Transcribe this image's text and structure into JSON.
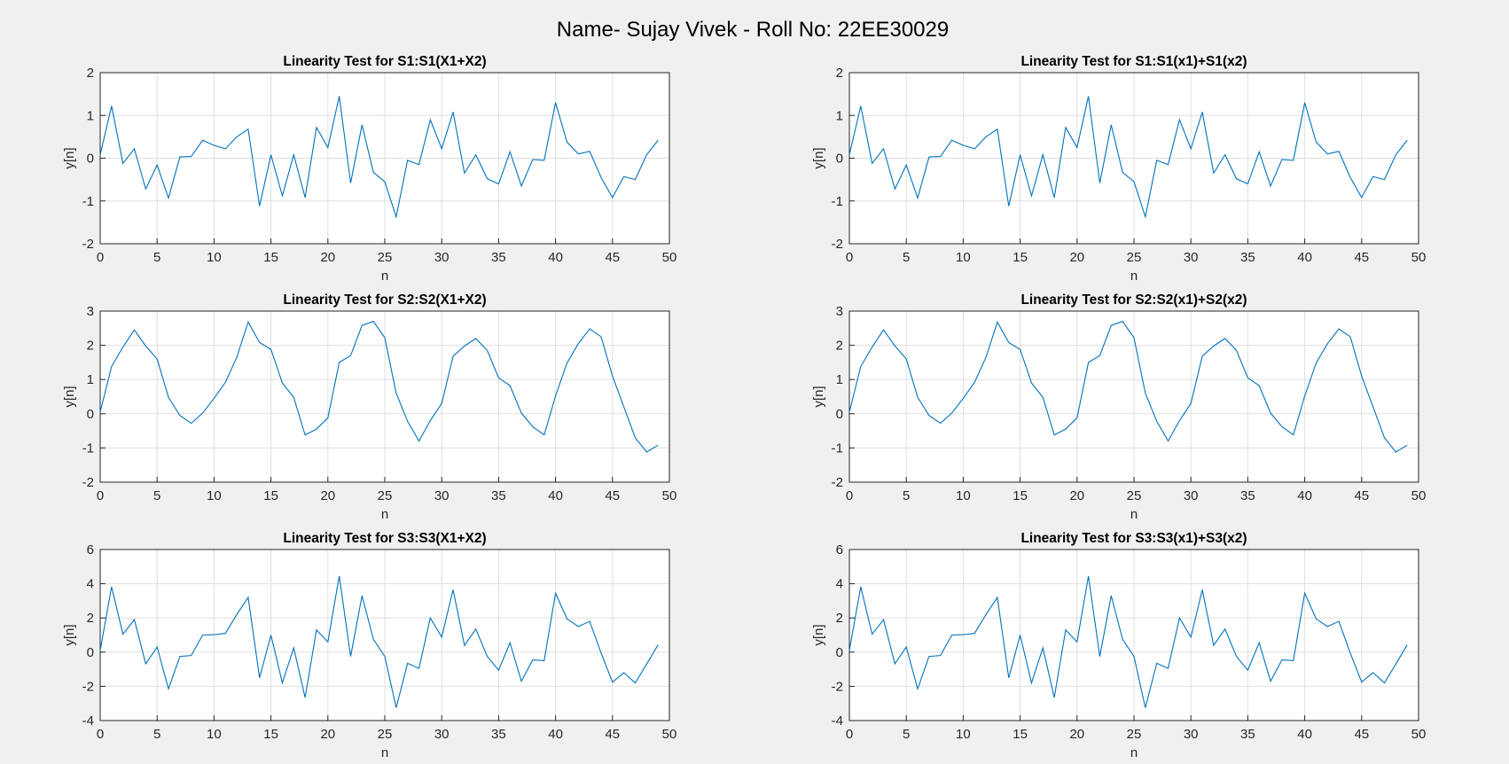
{
  "figure": {
    "suptitle": "Name- Sujay Vivek - Roll No: 22EE30029"
  },
  "colors": {
    "background": "#f0f0f0",
    "axes_background": "#ffffff",
    "line": "#0072bd",
    "grid": "#dfdfdf",
    "axis": "#262626"
  },
  "chart_data": [
    {
      "type": "line",
      "title": "Linearity Test for S1:S1(X1+X2)",
      "xlabel": "n",
      "ylabel": "y[n]",
      "xlim": [
        0,
        50
      ],
      "ylim": [
        -2,
        2
      ],
      "xticks": [
        0,
        5,
        10,
        15,
        20,
        25,
        30,
        35,
        40,
        45,
        50
      ],
      "yticks": [
        -2,
        -1,
        0,
        1,
        2
      ],
      "grid": true,
      "series": [
        {
          "x": [
            0,
            1,
            2,
            3,
            4,
            5,
            6,
            7,
            8,
            9,
            10,
            11,
            12,
            13,
            14,
            15,
            16,
            17,
            18,
            19,
            20,
            21,
            22,
            23,
            24,
            25,
            26,
            27,
            28,
            29,
            30,
            31,
            32,
            33,
            34,
            35,
            36,
            37,
            38,
            39,
            40,
            41,
            42,
            43,
            44,
            45,
            46,
            47,
            48,
            49
          ],
          "values": [
            0.08,
            1.22,
            -0.12,
            0.22,
            -0.72,
            -0.16,
            -0.93,
            0.03,
            0.04,
            0.42,
            0.3,
            0.22,
            0.5,
            0.68,
            -1.12,
            0.08,
            -0.88,
            0.08,
            -0.92,
            0.72,
            0.25,
            1.45,
            -0.58,
            0.78,
            -0.33,
            -0.55,
            -1.37,
            -0.05,
            -0.15,
            0.9,
            0.22,
            1.08,
            -0.35,
            0.08,
            -0.48,
            -0.6,
            0.15,
            -0.65,
            -0.03,
            -0.05,
            1.3,
            0.38,
            0.1,
            0.16,
            -0.45,
            -0.92,
            -0.43,
            -0.5,
            0.08,
            0.42
          ]
        }
      ]
    },
    {
      "type": "line",
      "title": "Linearity Test for S1:S1(x1)+S1(x2)",
      "xlabel": "n",
      "ylabel": "y[n]",
      "xlim": [
        0,
        50
      ],
      "ylim": [
        -2,
        2
      ],
      "xticks": [
        0,
        5,
        10,
        15,
        20,
        25,
        30,
        35,
        40,
        45,
        50
      ],
      "yticks": [
        -2,
        -1,
        0,
        1,
        2
      ],
      "grid": true,
      "series": [
        {
          "x": [
            0,
            1,
            2,
            3,
            4,
            5,
            6,
            7,
            8,
            9,
            10,
            11,
            12,
            13,
            14,
            15,
            16,
            17,
            18,
            19,
            20,
            21,
            22,
            23,
            24,
            25,
            26,
            27,
            28,
            29,
            30,
            31,
            32,
            33,
            34,
            35,
            36,
            37,
            38,
            39,
            40,
            41,
            42,
            43,
            44,
            45,
            46,
            47,
            48,
            49
          ],
          "values": [
            0.08,
            1.22,
            -0.12,
            0.22,
            -0.72,
            -0.16,
            -0.93,
            0.03,
            0.04,
            0.42,
            0.3,
            0.22,
            0.5,
            0.68,
            -1.12,
            0.08,
            -0.88,
            0.08,
            -0.92,
            0.72,
            0.25,
            1.45,
            -0.58,
            0.78,
            -0.33,
            -0.55,
            -1.37,
            -0.05,
            -0.15,
            0.9,
            0.22,
            1.08,
            -0.35,
            0.08,
            -0.48,
            -0.6,
            0.15,
            -0.65,
            -0.03,
            -0.05,
            1.3,
            0.38,
            0.1,
            0.16,
            -0.45,
            -0.92,
            -0.43,
            -0.5,
            0.08,
            0.42
          ]
        }
      ]
    },
    {
      "type": "line",
      "title": "Linearity Test for S2:S2(X1+X2)",
      "xlabel": "n",
      "ylabel": "y[n]",
      "xlim": [
        0,
        50
      ],
      "ylim": [
        -2,
        3
      ],
      "xticks": [
        0,
        5,
        10,
        15,
        20,
        25,
        30,
        35,
        40,
        45,
        50
      ],
      "yticks": [
        -2,
        -1,
        0,
        1,
        2,
        3
      ],
      "grid": true,
      "series": [
        {
          "x": [
            0,
            1,
            2,
            3,
            4,
            5,
            6,
            7,
            8,
            9,
            10,
            11,
            12,
            13,
            14,
            15,
            16,
            17,
            18,
            19,
            20,
            21,
            22,
            23,
            24,
            25,
            26,
            27,
            28,
            29,
            30,
            31,
            32,
            33,
            34,
            35,
            36,
            37,
            38,
            39,
            40,
            41,
            42,
            43,
            44,
            45,
            46,
            47,
            48,
            49
          ],
          "values": [
            0.05,
            1.38,
            1.95,
            2.45,
            1.98,
            1.6,
            0.48,
            -0.05,
            -0.28,
            0.02,
            0.45,
            0.92,
            1.65,
            2.68,
            2.08,
            1.88,
            0.9,
            0.48,
            -0.62,
            -0.45,
            -0.12,
            1.5,
            1.7,
            2.58,
            2.7,
            2.22,
            0.6,
            -0.22,
            -0.8,
            -0.2,
            0.3,
            1.68,
            1.98,
            2.2,
            1.85,
            1.05,
            0.82,
            0.02,
            -0.38,
            -0.62,
            0.52,
            1.48,
            2.05,
            2.48,
            2.25,
            1.1,
            0.2,
            -0.7,
            -1.12,
            -0.92
          ]
        }
      ]
    },
    {
      "type": "line",
      "title": "Linearity Test for S2:S2(x1)+S2(x2)",
      "xlabel": "n",
      "ylabel": "y[n]",
      "xlim": [
        0,
        50
      ],
      "ylim": [
        -2,
        3
      ],
      "xticks": [
        0,
        5,
        10,
        15,
        20,
        25,
        30,
        35,
        40,
        45,
        50
      ],
      "yticks": [
        -2,
        -1,
        0,
        1,
        2,
        3
      ],
      "grid": true,
      "series": [
        {
          "x": [
            0,
            1,
            2,
            3,
            4,
            5,
            6,
            7,
            8,
            9,
            10,
            11,
            12,
            13,
            14,
            15,
            16,
            17,
            18,
            19,
            20,
            21,
            22,
            23,
            24,
            25,
            26,
            27,
            28,
            29,
            30,
            31,
            32,
            33,
            34,
            35,
            36,
            37,
            38,
            39,
            40,
            41,
            42,
            43,
            44,
            45,
            46,
            47,
            48,
            49
          ],
          "values": [
            0.05,
            1.38,
            1.95,
            2.45,
            1.98,
            1.6,
            0.48,
            -0.05,
            -0.28,
            0.02,
            0.45,
            0.92,
            1.65,
            2.68,
            2.08,
            1.88,
            0.9,
            0.48,
            -0.62,
            -0.45,
            -0.12,
            1.5,
            1.7,
            2.58,
            2.7,
            2.22,
            0.6,
            -0.22,
            -0.8,
            -0.2,
            0.3,
            1.68,
            1.98,
            2.2,
            1.85,
            1.05,
            0.82,
            0.02,
            -0.38,
            -0.62,
            0.52,
            1.48,
            2.05,
            2.48,
            2.25,
            1.1,
            0.2,
            -0.7,
            -1.12,
            -0.92
          ]
        }
      ]
    },
    {
      "type": "line",
      "title": "Linearity Test for S3:S3(X1+X2)",
      "xlabel": "n",
      "ylabel": "y[n]",
      "xlim": [
        0,
        50
      ],
      "ylim": [
        -4,
        6
      ],
      "xticks": [
        0,
        5,
        10,
        15,
        20,
        25,
        30,
        35,
        40,
        45,
        50
      ],
      "yticks": [
        -4,
        -2,
        0,
        2,
        4,
        6
      ],
      "grid": true,
      "series": [
        {
          "x": [
            0,
            1,
            2,
            3,
            4,
            5,
            6,
            7,
            8,
            9,
            10,
            11,
            12,
            13,
            14,
            15,
            16,
            17,
            18,
            19,
            20,
            21,
            22,
            23,
            24,
            25,
            26,
            27,
            28,
            29,
            30,
            31,
            32,
            33,
            34,
            35,
            36,
            37,
            38,
            39,
            40,
            41,
            42,
            43,
            44,
            45,
            46,
            47,
            48,
            49
          ],
          "values": [
            0.1,
            3.82,
            1.05,
            1.9,
            -0.68,
            0.3,
            -2.15,
            -0.25,
            -0.2,
            1.0,
            1.02,
            1.1,
            2.2,
            3.2,
            -1.5,
            1.0,
            -1.8,
            0.25,
            -2.65,
            1.3,
            0.6,
            4.45,
            -0.25,
            3.3,
            0.75,
            -0.25,
            -3.25,
            -0.65,
            -0.95,
            2.0,
            0.88,
            3.65,
            0.4,
            1.35,
            -0.25,
            -1.05,
            0.55,
            -1.7,
            -0.45,
            -0.5,
            3.45,
            1.95,
            1.5,
            1.8,
            -0.05,
            -1.75,
            -1.2,
            -1.8,
            -0.7,
            0.42
          ]
        }
      ]
    },
    {
      "type": "line",
      "title": "Linearity Test for S3:S3(x1)+S3(x2)",
      "xlabel": "n",
      "ylabel": "y[n]",
      "xlim": [
        0,
        50
      ],
      "ylim": [
        -4,
        6
      ],
      "xticks": [
        0,
        5,
        10,
        15,
        20,
        25,
        30,
        35,
        40,
        45,
        50
      ],
      "yticks": [
        -4,
        -2,
        0,
        2,
        4,
        6
      ],
      "grid": true,
      "series": [
        {
          "x": [
            0,
            1,
            2,
            3,
            4,
            5,
            6,
            7,
            8,
            9,
            10,
            11,
            12,
            13,
            14,
            15,
            16,
            17,
            18,
            19,
            20,
            21,
            22,
            23,
            24,
            25,
            26,
            27,
            28,
            29,
            30,
            31,
            32,
            33,
            34,
            35,
            36,
            37,
            38,
            39,
            40,
            41,
            42,
            43,
            44,
            45,
            46,
            47,
            48,
            49
          ],
          "values": [
            0.1,
            3.82,
            1.05,
            1.9,
            -0.68,
            0.3,
            -2.15,
            -0.25,
            -0.2,
            1.0,
            1.02,
            1.1,
            2.2,
            3.2,
            -1.5,
            1.0,
            -1.8,
            0.25,
            -2.65,
            1.3,
            0.6,
            4.45,
            -0.25,
            3.3,
            0.75,
            -0.25,
            -3.25,
            -0.65,
            -0.95,
            2.0,
            0.88,
            3.65,
            0.4,
            1.35,
            -0.25,
            -1.05,
            0.55,
            -1.7,
            -0.45,
            -0.5,
            3.45,
            1.95,
            1.5,
            1.8,
            -0.05,
            -1.75,
            -1.2,
            -1.8,
            -0.7,
            0.42
          ]
        }
      ]
    }
  ]
}
